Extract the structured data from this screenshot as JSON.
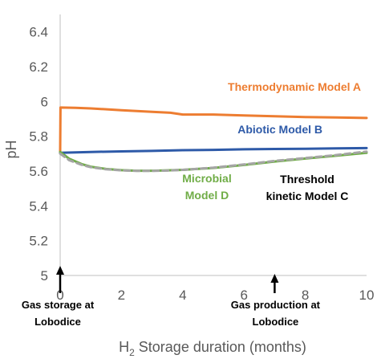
{
  "chart_data": {
    "type": "line",
    "xlabel_prefix": "H",
    "xlabel_subscript": "2",
    "xlabel_rest": " Storage duration (months)",
    "ylabel": "pH",
    "xlim": [
      0,
      10
    ],
    "ylim": [
      5,
      6.5
    ],
    "x_ticks": [
      "0",
      "2",
      "4",
      "6",
      "8",
      "10"
    ],
    "y_ticks": [
      "5",
      "5.2",
      "5.4",
      "5.6",
      "5.8",
      "6",
      "6.2",
      "6.4"
    ],
    "grid": false,
    "series": [
      {
        "name": "Thermodynamic Model A",
        "label_lines": [
          "Thermodynamic Model A"
        ],
        "color": "#ed7d31",
        "dash": "none",
        "x": [
          0,
          0.01,
          0.5,
          1,
          2,
          3,
          3.6,
          4,
          5,
          6,
          7,
          8,
          9,
          10
        ],
        "y": [
          5.71,
          5.965,
          5.963,
          5.96,
          5.95,
          5.94,
          5.935,
          5.925,
          5.925,
          5.92,
          5.915,
          5.91,
          5.908,
          5.905
        ]
      },
      {
        "name": "Abiotic Model B",
        "label_lines": [
          "Abiotic Model B"
        ],
        "color": "#2e5aa8",
        "dash": "none",
        "x": [
          0,
          1,
          2,
          3,
          4,
          5,
          6,
          7,
          8,
          9,
          10
        ],
        "y": [
          5.705,
          5.71,
          5.713,
          5.716,
          5.72,
          5.722,
          5.725,
          5.727,
          5.728,
          5.73,
          5.732
        ]
      },
      {
        "name": "Microbial Model D",
        "label_lines": [
          "Microbial",
          "Model D"
        ],
        "color": "#70ad47",
        "dash": "none",
        "x": [
          0,
          0.3,
          0.7,
          1,
          1.5,
          2,
          2.5,
          3,
          3.5,
          4,
          5,
          6,
          7,
          8,
          9,
          10
        ],
        "y": [
          5.71,
          5.67,
          5.64,
          5.625,
          5.612,
          5.605,
          5.602,
          5.602,
          5.604,
          5.607,
          5.618,
          5.635,
          5.655,
          5.672,
          5.688,
          5.705
        ]
      },
      {
        "name": "Threshold kinetic Model C",
        "label_lines": [
          "Threshold",
          "kinetic Model C"
        ],
        "color": "#a5a5a5",
        "dash": "7 5",
        "x": [
          0,
          0.3,
          0.7,
          1,
          1.5,
          2,
          2.5,
          3,
          3.5,
          4,
          5,
          6,
          7,
          8,
          9,
          10
        ],
        "y": [
          5.7,
          5.662,
          5.636,
          5.622,
          5.61,
          5.604,
          5.601,
          5.601,
          5.603,
          5.607,
          5.62,
          5.638,
          5.658,
          5.675,
          5.692,
          5.712
        ]
      }
    ],
    "annotations": [
      {
        "x": 0,
        "lines": [
          "Gas storage at",
          "Lobodice"
        ]
      },
      {
        "x": 7,
        "lines": [
          "Gas production at",
          "Lobodice"
        ]
      }
    ]
  }
}
